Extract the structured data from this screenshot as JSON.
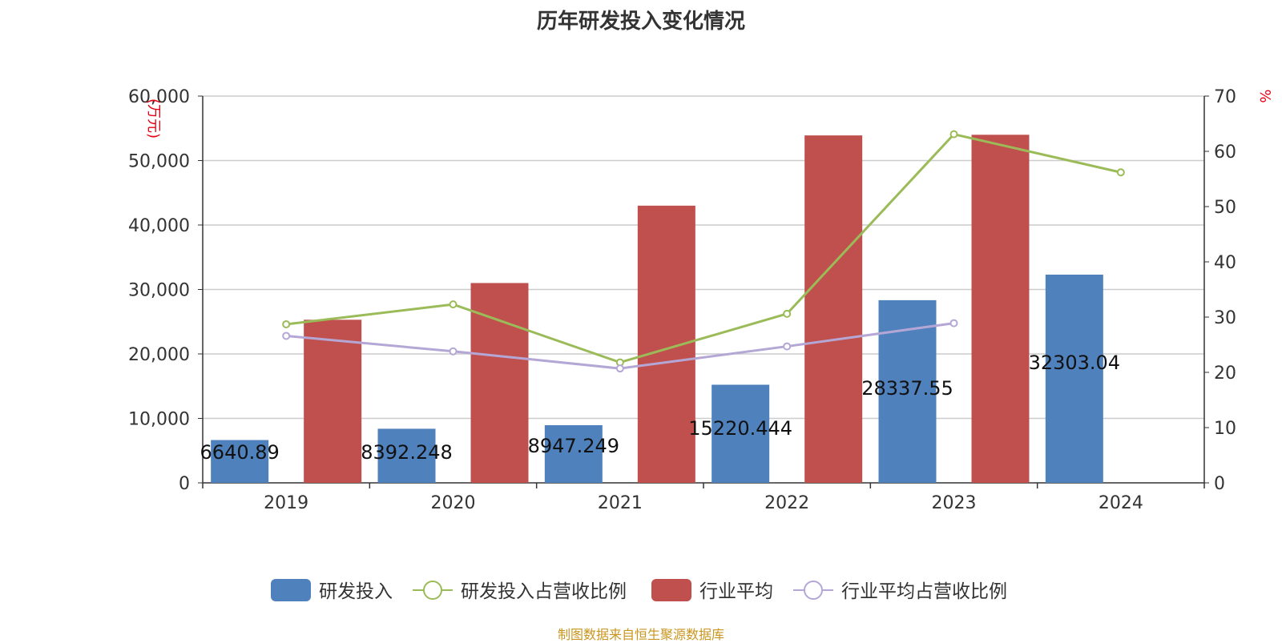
{
  "chart_data": {
    "type": "bar",
    "title": "历年研发投入变化情况",
    "categories": [
      "2019",
      "2020",
      "2021",
      "2022",
      "2023",
      "2024"
    ],
    "left_axis": {
      "unit_label": "(万元)",
      "ylim": [
        0,
        60000
      ],
      "ticks": [
        "0",
        "10,000",
        "20,000",
        "30,000",
        "40,000",
        "50,000",
        "60,000"
      ]
    },
    "right_axis": {
      "unit_label": "%",
      "ylim": [
        0,
        70
      ],
      "ticks": [
        "0",
        "10",
        "20",
        "30",
        "40",
        "50",
        "60",
        "70"
      ]
    },
    "grid": true,
    "legend_position": "bottom",
    "series": [
      {
        "name": "研发投入",
        "type": "bar",
        "axis": "left",
        "color": "#4f81bd",
        "values": [
          6640.89,
          8392.248,
          8947.249,
          15220.444,
          28337.55,
          32303.04
        ],
        "labels": [
          "6640.89",
          "8392.248",
          "8947.249",
          "15220.444",
          "28337.55",
          "32303.04"
        ]
      },
      {
        "name": "研发投入占营收比例",
        "type": "line",
        "axis": "right",
        "color": "#9bbb59",
        "values": [
          28.7,
          32.3,
          21.8,
          30.6,
          63.1,
          56.2
        ]
      },
      {
        "name": "行业平均",
        "type": "bar",
        "axis": "left",
        "color": "#c0504d",
        "values": [
          25300,
          31000,
          43000,
          53900,
          54000,
          null
        ]
      },
      {
        "name": "行业平均占营收比例",
        "type": "line",
        "axis": "right",
        "color": "#b4a7d6",
        "values": [
          26.6,
          23.8,
          20.7,
          24.7,
          28.9,
          null
        ]
      }
    ]
  },
  "source": "制图数据来自恒生聚源数据库"
}
